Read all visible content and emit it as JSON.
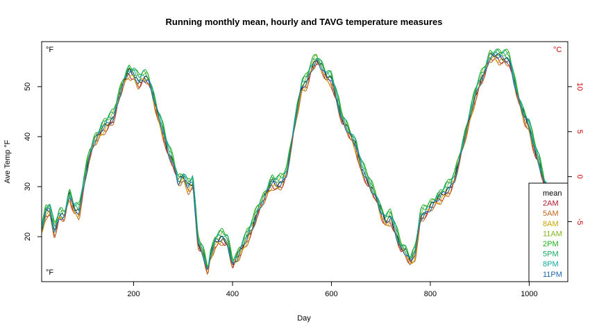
{
  "chart_data": {
    "type": "line",
    "title": "Running monthly mean, hourly and TAVG temperature measures",
    "xlabel": "Day",
    "ylabel": "Ave Temp °F",
    "left_unit": "°F",
    "right_unit": "°C",
    "xlim": [
      14,
      1078
    ],
    "ylim": [
      11,
      59
    ],
    "x_ticks": [
      200,
      400,
      600,
      800,
      1000
    ],
    "y_ticks_f": [
      20,
      30,
      40,
      50
    ],
    "y_ticks_c": [
      -5,
      0,
      5,
      10
    ],
    "grid": false,
    "legend_position": "bottom-right",
    "x_end": 1036,
    "base_curve": [
      [
        15,
        21.5
      ],
      [
        22,
        25
      ],
      [
        30,
        25.5
      ],
      [
        40,
        21
      ],
      [
        50,
        24.5
      ],
      [
        60,
        24
      ],
      [
        70,
        28.5
      ],
      [
        80,
        25.5
      ],
      [
        90,
        25
      ],
      [
        100,
        31
      ],
      [
        110,
        36
      ],
      [
        120,
        39
      ],
      [
        140,
        42
      ],
      [
        150,
        43
      ],
      [
        160,
        44
      ],
      [
        170,
        48
      ],
      [
        180,
        51
      ],
      [
        190,
        53
      ],
      [
        200,
        52.5
      ],
      [
        210,
        51
      ],
      [
        220,
        52
      ],
      [
        230,
        51.5
      ],
      [
        240,
        48
      ],
      [
        250,
        44
      ],
      [
        260,
        41
      ],
      [
        270,
        37
      ],
      [
        280,
        35
      ],
      [
        290,
        31
      ],
      [
        300,
        32
      ],
      [
        310,
        30
      ],
      [
        320,
        31
      ],
      [
        330,
        19
      ],
      [
        340,
        17
      ],
      [
        350,
        13
      ],
      [
        355,
        16
      ],
      [
        365,
        19
      ],
      [
        380,
        20
      ],
      [
        390,
        19
      ],
      [
        400,
        14.5
      ],
      [
        410,
        16
      ],
      [
        420,
        18
      ],
      [
        440,
        22
      ],
      [
        450,
        25
      ],
      [
        460,
        27
      ],
      [
        470,
        29
      ],
      [
        480,
        31
      ],
      [
        490,
        30.5
      ],
      [
        500,
        31
      ],
      [
        510,
        33
      ],
      [
        520,
        39
      ],
      [
        530,
        45
      ],
      [
        540,
        50
      ],
      [
        550,
        51
      ],
      [
        560,
        54
      ],
      [
        570,
        55.5
      ],
      [
        580,
        54
      ],
      [
        590,
        52
      ],
      [
        600,
        51.5
      ],
      [
        610,
        48
      ],
      [
        620,
        44
      ],
      [
        630,
        42
      ],
      [
        640,
        40
      ],
      [
        650,
        38
      ],
      [
        660,
        34
      ],
      [
        670,
        32
      ],
      [
        680,
        30
      ],
      [
        690,
        28
      ],
      [
        700,
        25
      ],
      [
        710,
        23
      ],
      [
        720,
        24
      ],
      [
        730,
        21
      ],
      [
        740,
        18
      ],
      [
        750,
        17
      ],
      [
        760,
        15
      ],
      [
        770,
        17
      ],
      [
        780,
        24
      ],
      [
        790,
        25
      ],
      [
        800,
        26
      ],
      [
        810,
        27
      ],
      [
        820,
        28
      ],
      [
        830,
        29
      ],
      [
        840,
        30
      ],
      [
        850,
        32
      ],
      [
        860,
        36
      ],
      [
        870,
        40
      ],
      [
        880,
        44
      ],
      [
        890,
        48
      ],
      [
        900,
        51
      ],
      [
        910,
        53
      ],
      [
        920,
        56
      ],
      [
        930,
        56.2
      ],
      [
        940,
        56
      ],
      [
        950,
        55.8
      ],
      [
        960,
        55.5
      ],
      [
        970,
        51
      ],
      [
        980,
        47
      ],
      [
        990,
        44
      ],
      [
        1000,
        42
      ],
      [
        1010,
        38
      ],
      [
        1020,
        35
      ],
      [
        1030,
        31
      ],
      [
        1036,
        29.5
      ]
    ],
    "series": [
      {
        "name": "mean",
        "color": "#000000",
        "offset": 0.0
      },
      {
        "name": "2AM",
        "color": "#b2182b",
        "offset": -0.7
      },
      {
        "name": "5AM",
        "color": "#c0661a",
        "offset": -1.0
      },
      {
        "name": "8AM",
        "color": "#c9a400",
        "offset": -0.5
      },
      {
        "name": "11AM",
        "color": "#7fb51e",
        "offset": 0.6
      },
      {
        "name": "2PM",
        "color": "#1fae1f",
        "offset": 1.1
      },
      {
        "name": "5PM",
        "color": "#1aa860",
        "offset": 0.9
      },
      {
        "name": "8PM",
        "color": "#12a9a0",
        "offset": 0.3
      },
      {
        "name": "11PM",
        "color": "#2166ac",
        "offset": -0.3
      }
    ]
  }
}
